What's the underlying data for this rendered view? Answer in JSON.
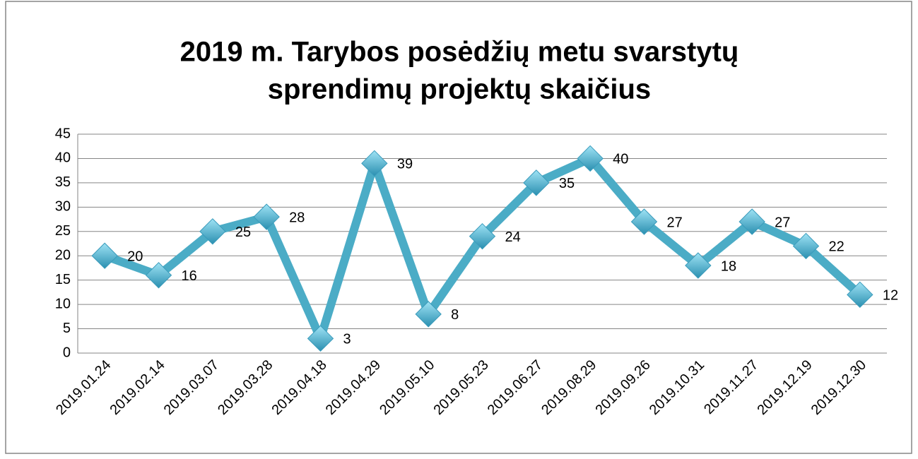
{
  "chart_data": {
    "type": "line",
    "title": [
      "2019 m. Tarybos posėdžių metu svarstytų",
      "sprendimų projektų skaičius"
    ],
    "categories": [
      "2019.01.24",
      "2019.02.14",
      "2019.03.07",
      "2019.03.28",
      "2019.04.18",
      "2019.04.29",
      "2019.05.10",
      "2019.05.23",
      "2019.06.27",
      "2019.08.29",
      "2019.09.26",
      "2019.10.31",
      "2019.11.27",
      "2019.12.19",
      "2019.12.30"
    ],
    "values": [
      20,
      16,
      25,
      28,
      3,
      39,
      8,
      24,
      35,
      40,
      27,
      18,
      27,
      22,
      12
    ],
    "color": "#4bacc6",
    "ylim": [
      0,
      45
    ],
    "yticks": [
      0,
      5,
      10,
      15,
      20,
      25,
      30,
      35,
      40,
      45
    ],
    "grid": true
  }
}
